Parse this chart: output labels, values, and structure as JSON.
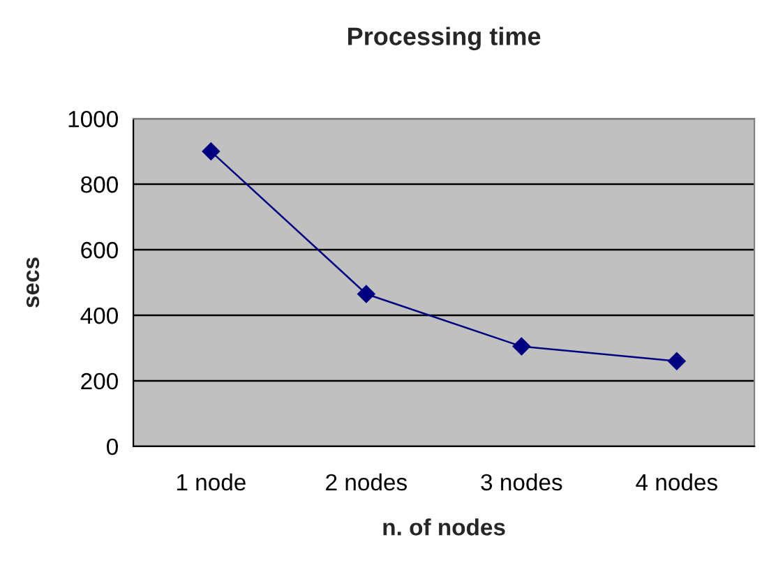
{
  "chart_data": {
    "type": "line",
    "title": "Processing time",
    "xlabel": "n. of nodes",
    "ylabel": "secs",
    "categories": [
      "1 node",
      "2 nodes",
      "3 nodes",
      "4 nodes"
    ],
    "series": [
      {
        "color": "#000080",
        "values": [
          900,
          465,
          305,
          260
        ]
      }
    ],
    "ylim": [
      0,
      1000
    ],
    "yticks": [
      0,
      200,
      400,
      600,
      800,
      1000
    ],
    "grid": "y",
    "marker": "diamond",
    "line_style": "solid"
  }
}
